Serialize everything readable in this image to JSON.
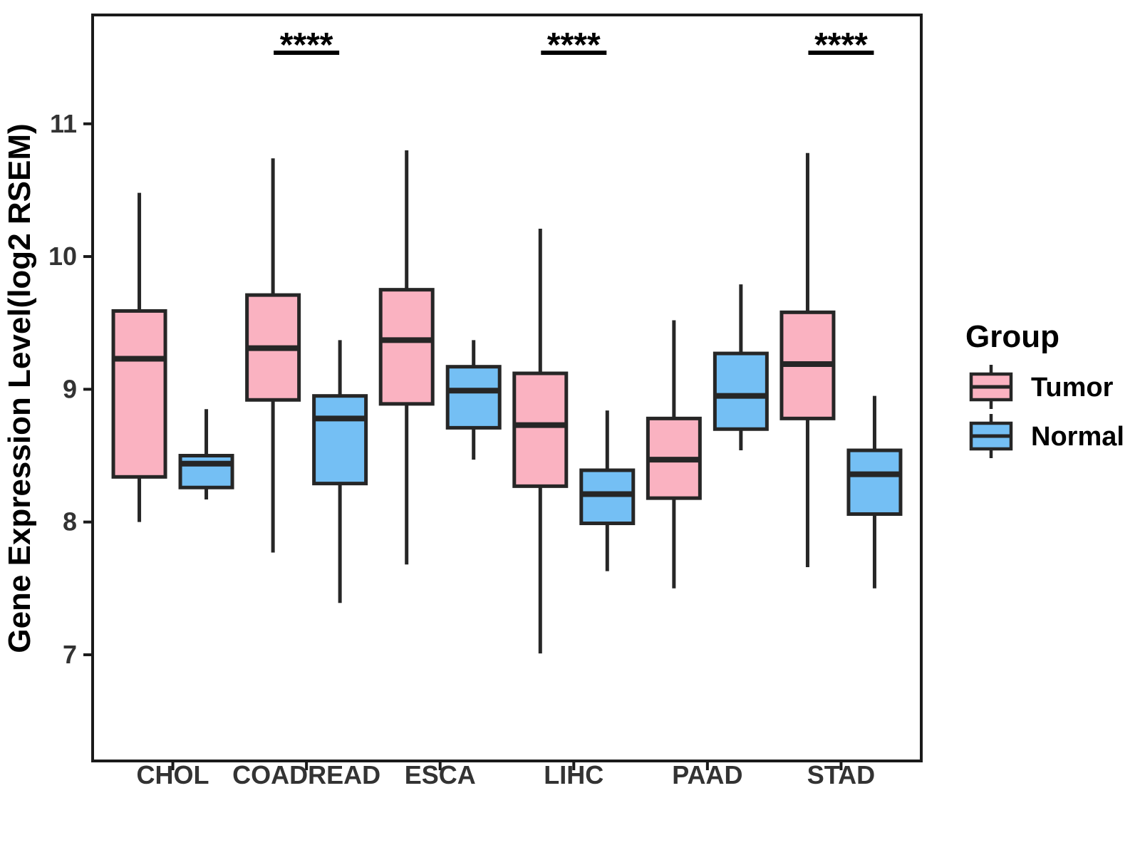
{
  "chart_data": {
    "type": "grouped_boxplot",
    "title": "",
    "xlabel": "",
    "ylabel": "Gene Expression Level(log2 RSEM)",
    "categories": [
      "CHOL",
      "COADREAD",
      "ESCA",
      "LIHC",
      "PAAD",
      "STAD"
    ],
    "yticks": [
      7,
      8,
      9,
      10,
      11
    ],
    "ylim": [
      6.2,
      11.82
    ],
    "grid": false,
    "legend": {
      "title": "Group",
      "position": "right",
      "entries": [
        {
          "name": "Tumor",
          "color": "#FAB2C1"
        },
        {
          "name": "Normal",
          "color": "#74BFF4"
        }
      ]
    },
    "series": [
      {
        "name": "Tumor",
        "color": "#FAB2C1",
        "boxes": [
          {
            "category": "CHOL",
            "min": 8.0,
            "q1": 8.34,
            "median": 9.23,
            "q3": 9.59,
            "max": 10.48
          },
          {
            "category": "COADREAD",
            "min": 7.77,
            "q1": 8.92,
            "median": 9.31,
            "q3": 9.71,
            "max": 10.74
          },
          {
            "category": "ESCA",
            "min": 7.68,
            "q1": 8.89,
            "median": 9.37,
            "q3": 9.75,
            "max": 10.8
          },
          {
            "category": "LIHC",
            "min": 7.01,
            "q1": 8.27,
            "median": 8.73,
            "q3": 9.12,
            "max": 10.21
          },
          {
            "category": "PAAD",
            "min": 7.5,
            "q1": 8.18,
            "median": 8.47,
            "q3": 8.78,
            "max": 9.52
          },
          {
            "category": "STAD",
            "min": 7.66,
            "q1": 8.78,
            "median": 9.19,
            "q3": 9.58,
            "max": 10.78
          }
        ]
      },
      {
        "name": "Normal",
        "color": "#74BFF4",
        "boxes": [
          {
            "category": "CHOL",
            "min": 8.17,
            "q1": 8.26,
            "median": 8.44,
            "q3": 8.5,
            "max": 8.85
          },
          {
            "category": "COADREAD",
            "min": 7.39,
            "q1": 8.29,
            "median": 8.78,
            "q3": 8.95,
            "max": 9.37
          },
          {
            "category": "ESCA",
            "min": 8.47,
            "q1": 8.71,
            "median": 8.99,
            "q3": 9.17,
            "max": 9.37
          },
          {
            "category": "LIHC",
            "min": 7.63,
            "q1": 7.99,
            "median": 8.21,
            "q3": 8.39,
            "max": 8.84
          },
          {
            "category": "PAAD",
            "min": 8.54,
            "q1": 8.7,
            "median": 8.95,
            "q3": 9.27,
            "max": 9.79
          },
          {
            "category": "STAD",
            "min": 7.5,
            "q1": 8.06,
            "median": 8.36,
            "q3": 8.54,
            "max": 8.95
          }
        ]
      }
    ],
    "significance": [
      {
        "category": "COADREAD",
        "label": "****"
      },
      {
        "category": "LIHC",
        "label": "****"
      },
      {
        "category": "STAD",
        "label": "****"
      }
    ],
    "colors": {
      "box_stroke": "#262626",
      "panel_border": "#1a1a1a",
      "tick_label": "#333333",
      "axis_title": "#000000",
      "significance": "#000000"
    }
  }
}
